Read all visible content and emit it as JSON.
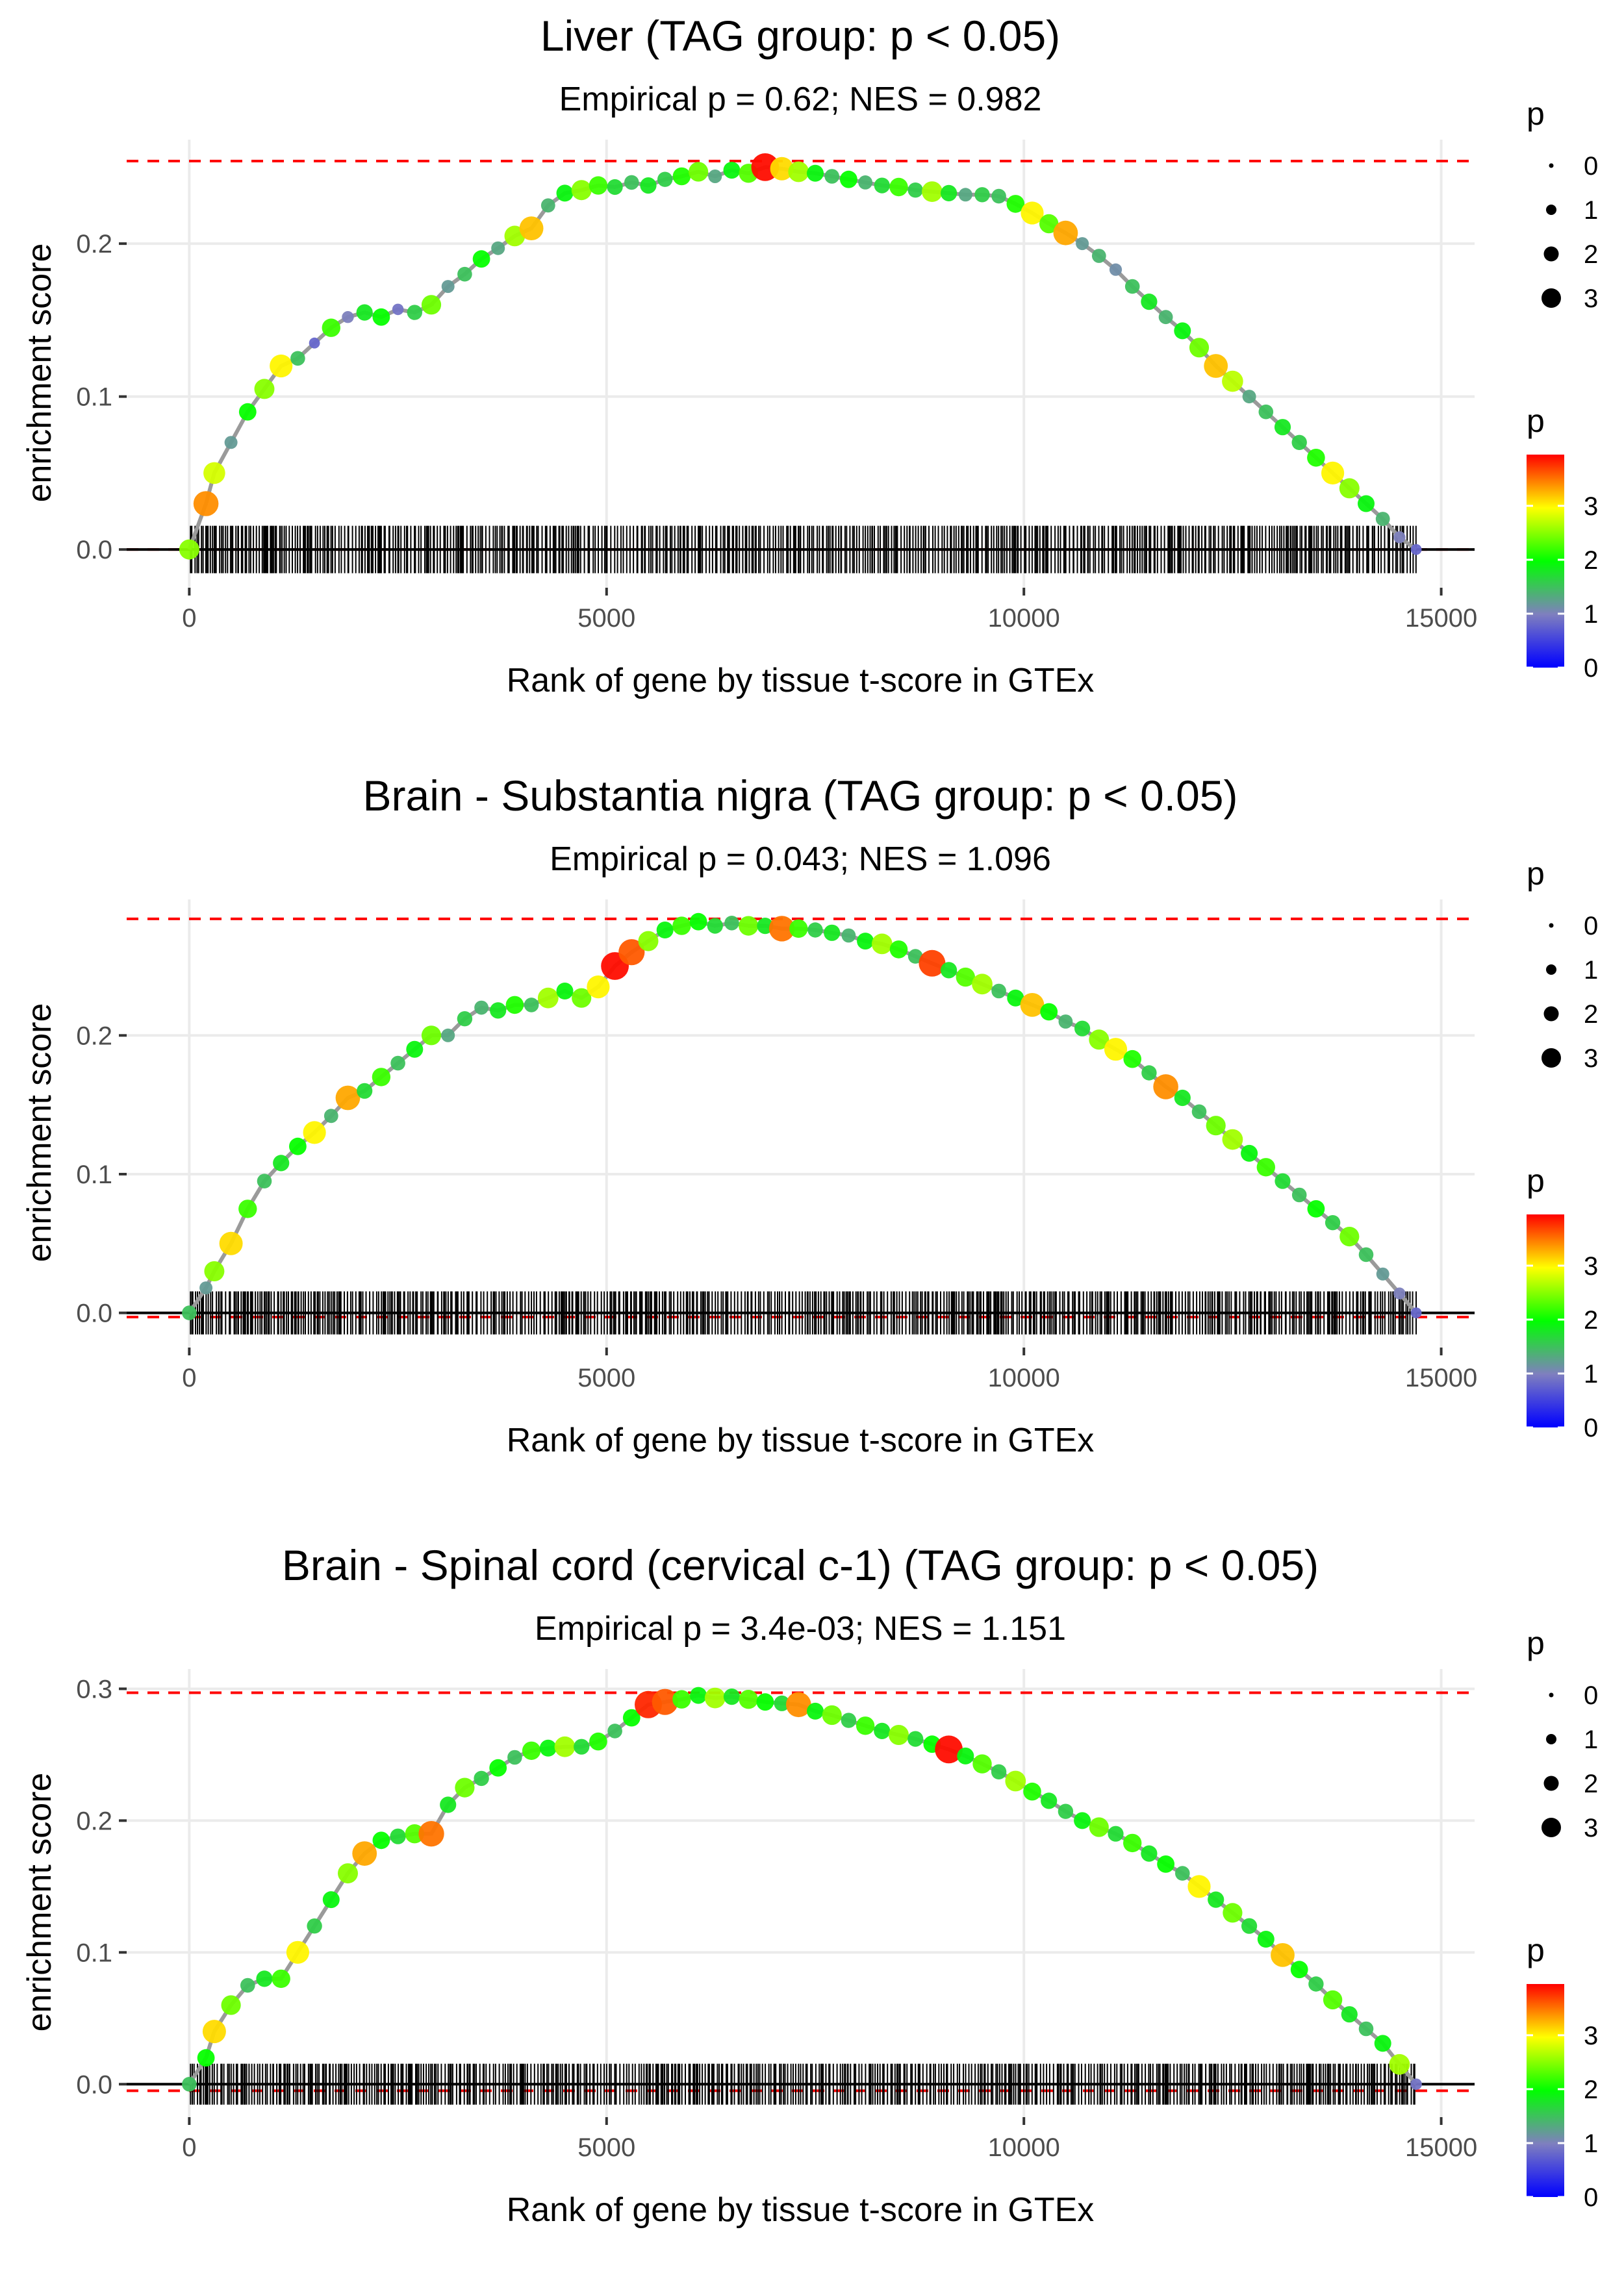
{
  "chart_data": [
    {
      "type": "line",
      "title": "Liver (TAG group: p < 0.05)",
      "subtitle": "Empirical p = 0.62; NES = 0.982",
      "xlabel": "Rank of gene by tissue t-score in GTEx",
      "ylabel": "enrichment score",
      "xlim": [
        -750,
        15400
      ],
      "ylim": [
        -0.025,
        0.268
      ],
      "x_ticks": [
        0,
        5000,
        10000,
        15000
      ],
      "x_tick_labels": [
        "0",
        "5000",
        "10000",
        "15000"
      ],
      "y_ticks": [
        0.0,
        0.1,
        0.2
      ],
      "y_tick_labels": [
        "0.0",
        "0.1",
        "0.2"
      ],
      "max_es": 0.254,
      "min_es": 0.0,
      "grid": true,
      "series": [
        {
          "name": "running enrichment score",
          "x": [
            0,
            200,
            300,
            500,
            700,
            900,
            1100,
            1300,
            1500,
            1700,
            1900,
            2100,
            2300,
            2500,
            2700,
            2900,
            3100,
            3300,
            3500,
            3700,
            3900,
            4100,
            4300,
            4500,
            4700,
            4900,
            5100,
            5300,
            5500,
            5700,
            5900,
            6100,
            6300,
            6500,
            6700,
            6900,
            7100,
            7300,
            7500,
            7700,
            7900,
            8100,
            8300,
            8500,
            8700,
            8900,
            9100,
            9300,
            9500,
            9700,
            9900,
            10100,
            10300,
            10500,
            10700,
            10900,
            11100,
            11300,
            11500,
            11700,
            11900,
            12100,
            12300,
            12500,
            12700,
            12900,
            13100,
            13300,
            13500,
            13700,
            13900,
            14100,
            14300,
            14500,
            14700
          ],
          "y": [
            0.0,
            0.03,
            0.05,
            0.07,
            0.09,
            0.105,
            0.12,
            0.125,
            0.135,
            0.145,
            0.152,
            0.155,
            0.152,
            0.157,
            0.155,
            0.16,
            0.172,
            0.18,
            0.19,
            0.197,
            0.205,
            0.21,
            0.225,
            0.233,
            0.235,
            0.238,
            0.237,
            0.24,
            0.238,
            0.242,
            0.244,
            0.247,
            0.244,
            0.248,
            0.246,
            0.25,
            0.249,
            0.247,
            0.246,
            0.244,
            0.242,
            0.24,
            0.238,
            0.237,
            0.235,
            0.234,
            0.233,
            0.232,
            0.232,
            0.231,
            0.226,
            0.22,
            0.213,
            0.207,
            0.2,
            0.192,
            0.183,
            0.172,
            0.162,
            0.152,
            0.143,
            0.132,
            0.12,
            0.11,
            0.1,
            0.09,
            0.08,
            0.07,
            0.06,
            0.05,
            0.04,
            0.03,
            0.02,
            0.008,
            0.0
          ],
          "p": [
            2.5,
            3.4,
            2.8,
            1.2,
            2.0,
            2.5,
            3.0,
            1.5,
            0.8,
            2.2,
            1.0,
            1.8,
            2.0,
            0.9,
            1.6,
            2.4,
            1.2,
            1.5,
            2.0,
            1.3,
            2.6,
            3.2,
            1.4,
            1.9,
            2.5,
            2.2,
            1.7,
            1.5,
            1.8,
            1.6,
            2.1,
            2.4,
            1.3,
            1.9,
            2.3,
            3.9,
            3.1,
            2.6,
            1.9,
            1.5,
            2.0,
            1.4,
            1.7,
            2.2,
            1.6,
            2.6,
            1.8,
            1.3,
            1.6,
            1.5,
            2.1,
            3.0,
            2.3,
            3.3,
            1.2,
            1.4,
            1.1,
            1.5,
            1.8,
            1.4,
            1.9,
            2.4,
            3.2,
            2.7,
            1.3,
            1.5,
            1.8,
            1.6,
            2.1,
            3.0,
            2.5,
            1.9,
            1.4,
            1.0,
            0.8
          ]
        }
      ],
      "legend_size": {
        "title": "p",
        "labels": [
          "0",
          "1",
          "2",
          "3"
        ],
        "placement": "right-top"
      },
      "legend_color": {
        "title": "p",
        "labels": [
          "0",
          "1",
          "2",
          "3"
        ],
        "placement": "right-middle",
        "stops": [
          "#0000ff",
          "#7f7fbf",
          "#00ff00",
          "#ffff00",
          "#ff0000"
        ]
      }
    },
    {
      "type": "line",
      "title": "Brain - Substantia nigra (TAG group: p < 0.05)",
      "subtitle": "Empirical p = 0.043; NES = 1.096",
      "xlabel": "Rank of gene by tissue t-score in GTEx",
      "ylabel": "enrichment score",
      "xlim": [
        -750,
        15400
      ],
      "ylim": [
        -0.025,
        0.298
      ],
      "x_ticks": [
        0,
        5000,
        10000,
        15000
      ],
      "x_tick_labels": [
        "0",
        "5000",
        "10000",
        "15000"
      ],
      "y_ticks": [
        0.0,
        0.1,
        0.2
      ],
      "y_tick_labels": [
        "0.0",
        "0.1",
        "0.2"
      ],
      "max_es": 0.284,
      "min_es": -0.003,
      "grid": true,
      "series": [
        {
          "name": "running enrichment score",
          "x": [
            0,
            200,
            300,
            500,
            700,
            900,
            1100,
            1300,
            1500,
            1700,
            1900,
            2100,
            2300,
            2500,
            2700,
            2900,
            3100,
            3300,
            3500,
            3700,
            3900,
            4100,
            4300,
            4500,
            4700,
            4900,
            5100,
            5300,
            5500,
            5700,
            5900,
            6100,
            6300,
            6500,
            6700,
            6900,
            7100,
            7300,
            7500,
            7700,
            7900,
            8100,
            8300,
            8500,
            8700,
            8900,
            9100,
            9300,
            9500,
            9700,
            9900,
            10100,
            10300,
            10500,
            10700,
            10900,
            11100,
            11300,
            11500,
            11700,
            11900,
            12100,
            12300,
            12500,
            12700,
            12900,
            13100,
            13300,
            13500,
            13700,
            13900,
            14100,
            14300,
            14500,
            14700
          ],
          "y": [
            0.0,
            0.018,
            0.03,
            0.05,
            0.075,
            0.095,
            0.108,
            0.12,
            0.13,
            0.142,
            0.155,
            0.16,
            0.17,
            0.18,
            0.19,
            0.2,
            0.2,
            0.212,
            0.22,
            0.218,
            0.222,
            0.222,
            0.227,
            0.232,
            0.227,
            0.235,
            0.25,
            0.26,
            0.268,
            0.276,
            0.279,
            0.282,
            0.279,
            0.281,
            0.279,
            0.279,
            0.277,
            0.277,
            0.276,
            0.274,
            0.272,
            0.268,
            0.266,
            0.262,
            0.257,
            0.252,
            0.247,
            0.242,
            0.237,
            0.232,
            0.227,
            0.222,
            0.217,
            0.21,
            0.205,
            0.197,
            0.19,
            0.183,
            0.173,
            0.163,
            0.155,
            0.145,
            0.135,
            0.125,
            0.115,
            0.105,
            0.095,
            0.085,
            0.075,
            0.065,
            0.055,
            0.042,
            0.028,
            0.014,
            0.0
          ],
          "p": [
            1.5,
            1.2,
            2.5,
            3.1,
            2.2,
            1.5,
            1.8,
            2.0,
            3.0,
            1.4,
            3.3,
            1.7,
            2.2,
            1.5,
            1.9,
            2.4,
            1.3,
            1.6,
            1.4,
            1.8,
            2.1,
            1.5,
            2.6,
            1.9,
            2.4,
            3.0,
            3.9,
            3.6,
            2.5,
            1.9,
            2.2,
            2.0,
            1.7,
            1.5,
            2.4,
            1.8,
            3.5,
            2.2,
            1.6,
            1.8,
            1.4,
            1.9,
            2.6,
            2.1,
            1.5,
            3.7,
            1.8,
            2.3,
            2.6,
            1.5,
            1.9,
            3.2,
            2.0,
            1.4,
            1.7,
            2.5,
            3.0,
            2.1,
            1.6,
            3.4,
            1.8,
            1.5,
            2.4,
            2.6,
            1.9,
            2.2,
            1.7,
            1.5,
            2.0,
            1.6,
            2.4,
            1.5,
            1.2,
            1.0,
            0.8
          ]
        }
      ],
      "legend_size": {
        "title": "p",
        "labels": [
          "0",
          "1",
          "2",
          "3"
        ],
        "placement": "right-top"
      },
      "legend_color": {
        "title": "p",
        "labels": [
          "0",
          "1",
          "2",
          "3"
        ],
        "placement": "right-middle",
        "stops": [
          "#0000ff",
          "#7f7fbf",
          "#00ff00",
          "#ffff00",
          "#ff0000"
        ]
      }
    },
    {
      "type": "line",
      "title": "Brain - Spinal cord (cervical c-1) (TAG group: p < 0.05)",
      "subtitle": "Empirical p = 3.4e-03; NES = 1.151",
      "xlabel": "Rank of gene by tissue t-score in GTEx",
      "ylabel": "enrichment score",
      "xlim": [
        -750,
        15400
      ],
      "ylim": [
        -0.025,
        0.315
      ],
      "x_ticks": [
        0,
        5000,
        10000,
        15000
      ],
      "x_tick_labels": [
        "0",
        "5000",
        "10000",
        "15000"
      ],
      "y_ticks": [
        0.0,
        0.1,
        0.2,
        0.3
      ],
      "y_tick_labels": [
        "0.0",
        "0.1",
        "0.2",
        "0.3"
      ],
      "max_es": 0.297,
      "min_es": -0.005,
      "grid": true,
      "series": [
        {
          "name": "running enrichment score",
          "x": [
            0,
            200,
            300,
            500,
            700,
            900,
            1100,
            1300,
            1500,
            1700,
            1900,
            2100,
            2300,
            2500,
            2700,
            2900,
            3100,
            3300,
            3500,
            3700,
            3900,
            4100,
            4300,
            4500,
            4700,
            4900,
            5100,
            5300,
            5500,
            5700,
            5900,
            6100,
            6300,
            6500,
            6700,
            6900,
            7100,
            7300,
            7500,
            7700,
            7900,
            8100,
            8300,
            8500,
            8700,
            8900,
            9100,
            9300,
            9500,
            9700,
            9900,
            10100,
            10300,
            10500,
            10700,
            10900,
            11100,
            11300,
            11500,
            11700,
            11900,
            12100,
            12300,
            12500,
            12700,
            12900,
            13100,
            13300,
            13500,
            13700,
            13900,
            14100,
            14300,
            14500,
            14700
          ],
          "y": [
            0.0,
            0.02,
            0.04,
            0.06,
            0.075,
            0.08,
            0.08,
            0.1,
            0.12,
            0.14,
            0.16,
            0.175,
            0.185,
            0.188,
            0.19,
            0.19,
            0.212,
            0.225,
            0.232,
            0.24,
            0.248,
            0.253,
            0.255,
            0.256,
            0.256,
            0.26,
            0.268,
            0.278,
            0.288,
            0.29,
            0.292,
            0.295,
            0.293,
            0.294,
            0.292,
            0.29,
            0.289,
            0.288,
            0.283,
            0.28,
            0.276,
            0.272,
            0.268,
            0.265,
            0.262,
            0.258,
            0.254,
            0.249,
            0.243,
            0.237,
            0.23,
            0.222,
            0.215,
            0.207,
            0.2,
            0.195,
            0.19,
            0.183,
            0.175,
            0.167,
            0.16,
            0.15,
            0.14,
            0.13,
            0.12,
            0.11,
            0.098,
            0.087,
            0.076,
            0.064,
            0.053,
            0.042,
            0.031,
            0.015,
            0.0
          ],
          "p": [
            1.5,
            2.0,
            3.1,
            2.4,
            1.5,
            1.8,
            2.2,
            3.0,
            1.6,
            1.9,
            2.5,
            3.3,
            2.0,
            1.7,
            2.3,
            3.5,
            1.8,
            2.4,
            1.6,
            2.0,
            1.5,
            2.2,
            1.9,
            2.6,
            1.7,
            2.1,
            1.5,
            2.0,
            3.8,
            3.6,
            2.2,
            1.9,
            2.6,
            1.8,
            2.3,
            2.0,
            1.7,
            3.4,
            1.9,
            2.4,
            1.6,
            2.2,
            1.8,
            2.5,
            1.7,
            2.0,
            3.9,
            1.9,
            2.3,
            1.6,
            2.6,
            2.1,
            1.8,
            1.6,
            1.9,
            2.4,
            1.7,
            2.2,
            1.8,
            2.0,
            1.5,
            3.0,
            1.8,
            2.4,
            1.7,
            1.9,
            3.2,
            2.0,
            1.6,
            2.3,
            1.8,
            1.5,
            1.9,
            2.6,
            0.9
          ]
        }
      ],
      "legend_size": {
        "title": "p",
        "labels": [
          "0",
          "1",
          "2",
          "3"
        ],
        "placement": "right-top"
      },
      "legend_color": {
        "title": "p",
        "labels": [
          "0",
          "1",
          "2",
          "3"
        ],
        "placement": "right-middle",
        "stops": [
          "#0000ff",
          "#7f7fbf",
          "#00ff00",
          "#ffff00",
          "#ff0000"
        ]
      }
    }
  ]
}
